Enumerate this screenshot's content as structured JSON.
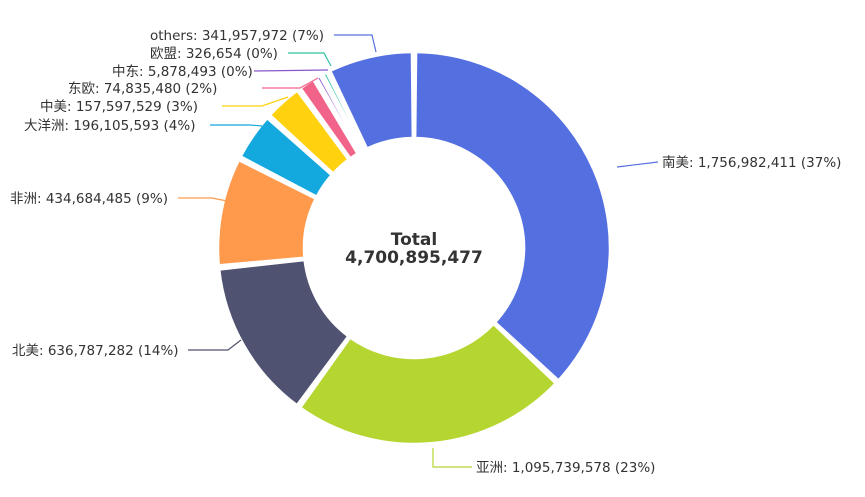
{
  "chart_data": {
    "type": "pie",
    "variant": "donut",
    "center_label": {
      "title": "Total",
      "value": "4,700,895,477"
    },
    "slices": [
      {
        "name": "南美",
        "value": 1756982411,
        "label": "南美: 1,756,982,411 (37%)",
        "color": "#5470e0"
      },
      {
        "name": "亚洲",
        "value": 1095739578,
        "label": "亚洲: 1,095,739,578 (23%)",
        "color": "#b5d531"
      },
      {
        "name": "北美",
        "value": 636787282,
        "label": "北美: 636,787,282 (14%)",
        "color": "#4f5270"
      },
      {
        "name": "非洲",
        "value": 434684485,
        "label": "非洲: 434,684,485 (9%)",
        "color": "#ff9a4d"
      },
      {
        "name": "大洋洲",
        "value": 196105593,
        "label": "大洋洲: 196,105,593 (4%)",
        "color": "#13a8de"
      },
      {
        "name": "中美",
        "value": 157597529,
        "label": "中美: 157,597,529 (3%)",
        "color": "#ffd10f"
      },
      {
        "name": "东欧",
        "value": 74835480,
        "label": "东欧: 74,835,480 (2%)",
        "color": "#f2638a"
      },
      {
        "name": "中东",
        "value": 5878493,
        "label": "中东: 5,878,493 (0%)",
        "color": "#8b56c9"
      },
      {
        "name": "欧盟",
        "value": 326654,
        "label": "欧盟: 326,654 (0%)",
        "color": "#2cc2a0"
      },
      {
        "name": "others",
        "value": 341957972,
        "label": "others: 341,957,972 (7%)",
        "color": "#5470e0"
      }
    ]
  }
}
